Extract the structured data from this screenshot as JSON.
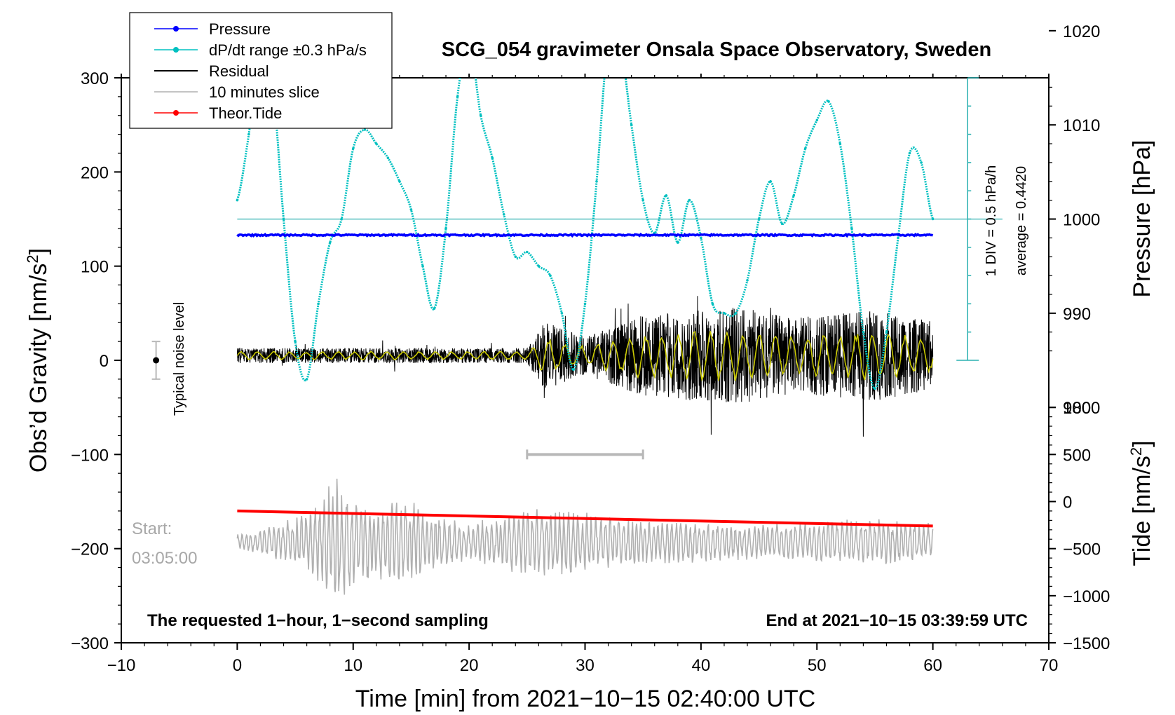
{
  "chart_data": {
    "type": "line",
    "title": "SCG_054 gravimeter Onsala Space Observatory, Sweden",
    "xlabel": "Time [min] from 2021−10−15 02:40:00 UTC",
    "ylabel": "Obs’d Gravity [nm/s²]",
    "ylabel_base": "Obs’d Gravity [nm/s",
    "ylabel_sup": "2",
    "ylabel_end": "]",
    "xlim": [
      -10,
      70
    ],
    "ylim": [
      -300,
      300
    ],
    "xticks": [
      -10,
      0,
      10,
      20,
      30,
      40,
      50,
      60,
      70
    ],
    "yticks": [
      300,
      200,
      100,
      0,
      -100,
      -200,
      -300
    ],
    "pressure_axis": {
      "label": "Pressure [hPa]",
      "ticks": [
        1020,
        1010,
        1000,
        990,
        980
      ],
      "ref_hpa": 1000,
      "ref_gravity": 150,
      "hpa_per_gravity_unit": 0.1
    },
    "tide_axis": {
      "label_base": "Tide [nm/s",
      "label_sup": "2",
      "label_end": "]",
      "ticks": [
        1000,
        500,
        0,
        -500,
        -1000,
        -1500
      ],
      "gravity_at_zero": -150,
      "tide_per_gravity_unit": 10
    },
    "dpdt_scale": {
      "label_div": "1 DIV = 0.5 hPa/h",
      "label_avg": "average = 0.4420",
      "bar_top": 300,
      "bar_bottom": 0,
      "divisions": 10,
      "center": 150
    },
    "legend": {
      "placement": "top-left",
      "entries": [
        {
          "label": "Pressure",
          "color": "#0000ff",
          "marker": true
        },
        {
          "label": "dP/dt range ±0.3 hPa/s",
          "color": "#00c0c0",
          "marker": true
        },
        {
          "label": "Residual",
          "color": "#000000",
          "marker": false
        },
        {
          "label": "10 minutes slice",
          "color": "#b0b0b0",
          "marker": false
        },
        {
          "label": "Theor.Tide",
          "color": "#ff0000",
          "marker": true
        }
      ]
    },
    "series": [
      {
        "name": "Pressure",
        "color": "#0000ff",
        "x": [
          0,
          60
        ],
        "y": [
          133,
          133
        ]
      },
      {
        "name": "dP/dt range ±0.3 hPa/s",
        "color": "#00c0c0",
        "x": [
          0,
          1,
          2,
          3,
          4,
          5,
          6,
          7,
          8,
          9,
          10,
          11,
          12,
          13,
          14,
          15,
          16,
          17,
          18,
          19,
          20,
          21,
          22,
          23,
          24,
          25,
          26,
          27,
          28,
          29,
          30,
          31,
          32,
          33,
          34,
          35,
          36,
          37,
          38,
          39,
          40,
          41,
          42,
          43,
          44,
          45,
          46,
          47,
          48,
          49,
          50,
          51,
          52,
          53,
          54,
          55,
          56,
          57,
          58,
          59,
          60
        ],
        "y": [
          170,
          240,
          330,
          300,
          150,
          20,
          -20,
          60,
          125,
          150,
          225,
          245,
          230,
          215,
          190,
          160,
          100,
          55,
          140,
          280,
          340,
          260,
          215,
          155,
          110,
          115,
          100,
          90,
          50,
          -10,
          60,
          190,
          340,
          340,
          250,
          170,
          135,
          175,
          125,
          170,
          130,
          60,
          50,
          50,
          85,
          150,
          190,
          145,
          175,
          225,
          255,
          275,
          230,
          140,
          30,
          -30,
          30,
          130,
          220,
          210,
          150
        ]
      },
      {
        "name": "Residual",
        "color": "#000000",
        "x_start": 0,
        "x_end": 60,
        "envelope": {
          "x": [
            0,
            25,
            26.5,
            30,
            35,
            43,
            48,
            55,
            60
          ],
          "amp": [
            10,
            10,
            45,
            25,
            55,
            65,
            50,
            60,
            45
          ]
        }
      },
      {
        "name": "10 minutes slice",
        "color": "#b0b0b0",
        "x_start": 0,
        "x_end": 60,
        "center": -193,
        "envelope": {
          "x": [
            0,
            6,
            8.5,
            11,
            15,
            20,
            25,
            35,
            45,
            55,
            60
          ],
          "amp": [
            8,
            30,
            70,
            45,
            45,
            20,
            40,
            25,
            20,
            25,
            20
          ]
        }
      },
      {
        "name": "Theor.Tide",
        "color": "#ff0000",
        "x": [
          0,
          60
        ],
        "y": [
          -160,
          -176
        ]
      }
    ],
    "filtered_overlay": {
      "color": "#c8c800"
    },
    "annotations": {
      "noise_label": "Typical noise level",
      "noise_x": -7,
      "noise_center": 0,
      "noise_halfwidth": 20,
      "slice_bar_from": 25,
      "slice_bar_to": 35,
      "slice_bar_y": -100,
      "start_label": "Start:",
      "start_time": "03:05:00",
      "bottom_left": "The requested 1−hour, 1−second sampling",
      "bottom_right": "End at 2021−10−15 03:39:59 UTC"
    }
  }
}
